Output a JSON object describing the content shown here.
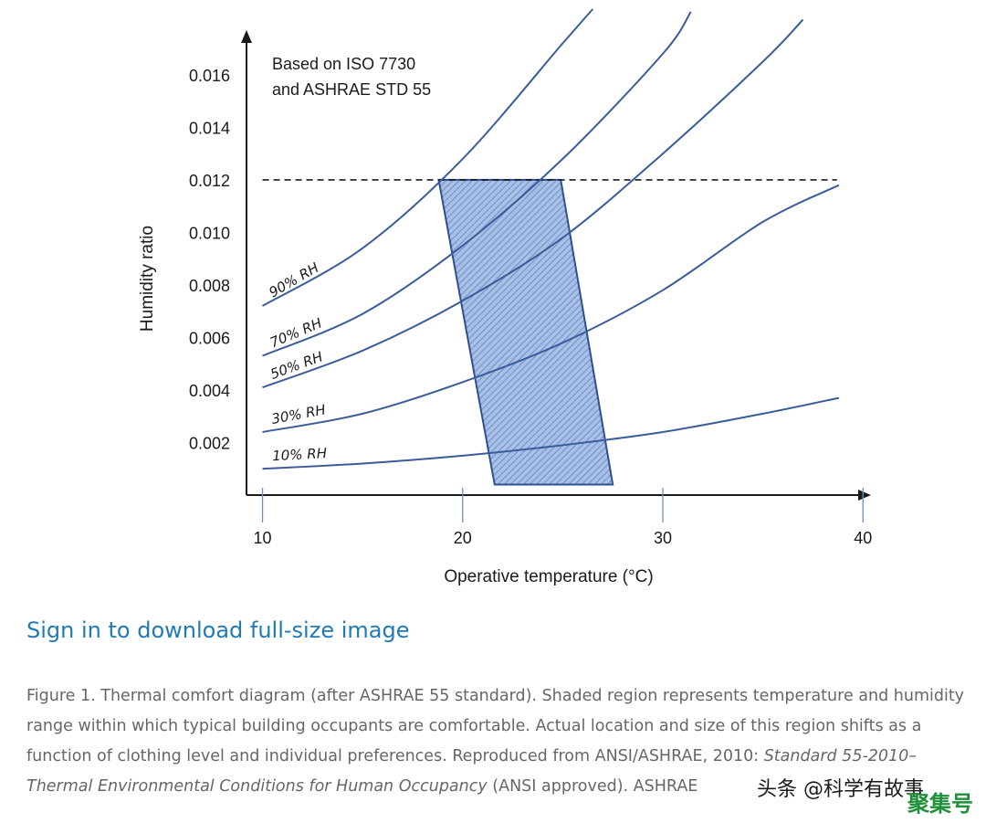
{
  "chart_data": {
    "type": "line",
    "note_lines": [
      "Based on ISO 7730",
      "and ASHRAE STD 55"
    ],
    "xlabel": "Operative temperature (°C)",
    "ylabel": "Humidity ratio",
    "x_ticks": [
      10,
      20,
      30,
      40
    ],
    "x_tick_labels": [
      "10",
      "20",
      "30",
      "40"
    ],
    "y_ticks": [
      0.002,
      0.004,
      0.006,
      0.008,
      0.01,
      0.012,
      0.014,
      0.016
    ],
    "y_tick_labels": [
      "0.002",
      "0.004",
      "0.006",
      "0.008",
      "0.010",
      "0.012",
      "0.014",
      "0.016"
    ],
    "xlim": [
      9.2,
      40.4
    ],
    "ylim": [
      0.0,
      0.0177
    ],
    "limit_line": {
      "y": 0.012,
      "x": [
        10.0,
        38.7
      ],
      "style": "dashed"
    },
    "comfort_zone": {
      "polygon": [
        [
          18.8,
          0.012
        ],
        [
          24.9,
          0.012
        ],
        [
          27.5,
          0.0004
        ],
        [
          21.6,
          0.0004
        ]
      ],
      "fill": "#9fb8e0",
      "hatch": true
    },
    "line_color": "#3a5c99",
    "series": [
      {
        "name": "10% RH",
        "label": "10% RH",
        "x": [
          10,
          15,
          20,
          25,
          30,
          35,
          38.8
        ],
        "y": [
          0.001,
          0.0012,
          0.0015,
          0.0019,
          0.0024,
          0.0031,
          0.0037
        ]
      },
      {
        "name": "30% RH",
        "label": "30% RH",
        "x": [
          10,
          15,
          20,
          25,
          30,
          35,
          38.8
        ],
        "y": [
          0.0024,
          0.0031,
          0.0043,
          0.0058,
          0.0078,
          0.0104,
          0.0118
        ]
      },
      {
        "name": "50% RH",
        "label": "50% RH",
        "x": [
          10,
          15,
          20,
          25,
          30,
          35,
          37.0
        ],
        "y": [
          0.0041,
          0.0055,
          0.0074,
          0.0098,
          0.013,
          0.0165,
          0.0181
        ]
      },
      {
        "name": "70% RH",
        "label": "70% RH",
        "x": [
          10,
          15,
          20,
          25,
          30,
          31.4
        ],
        "y": [
          0.0053,
          0.0069,
          0.0095,
          0.0128,
          0.0168,
          0.0184
        ]
      },
      {
        "name": "90% RH",
        "label": "90% RH",
        "x": [
          10,
          15,
          20,
          25,
          26.5
        ],
        "y": [
          0.0072,
          0.0094,
          0.0128,
          0.0172,
          0.0185
        ]
      }
    ],
    "grid": false
  },
  "page": {
    "signin_link": "Sign in to download full-size image",
    "caption": {
      "part1": "Figure 1. Thermal comfort diagram (after ASHRAE 55 standard). Shaded region represents temperature and humidity range within which typical building occupants are comfortable. Actual location and size of this region shifts as a function of clothing level and individual preferences. Reproduced from ANSI/ASHRAE, 2010: ",
      "italic": "Standard 55-2010–Thermal Environmental Conditions for Human Occupancy",
      "part2": " (ANSI approved). ASHRAE"
    },
    "watermark": "头条 @科学有故事",
    "watermark2": "聚集号"
  }
}
